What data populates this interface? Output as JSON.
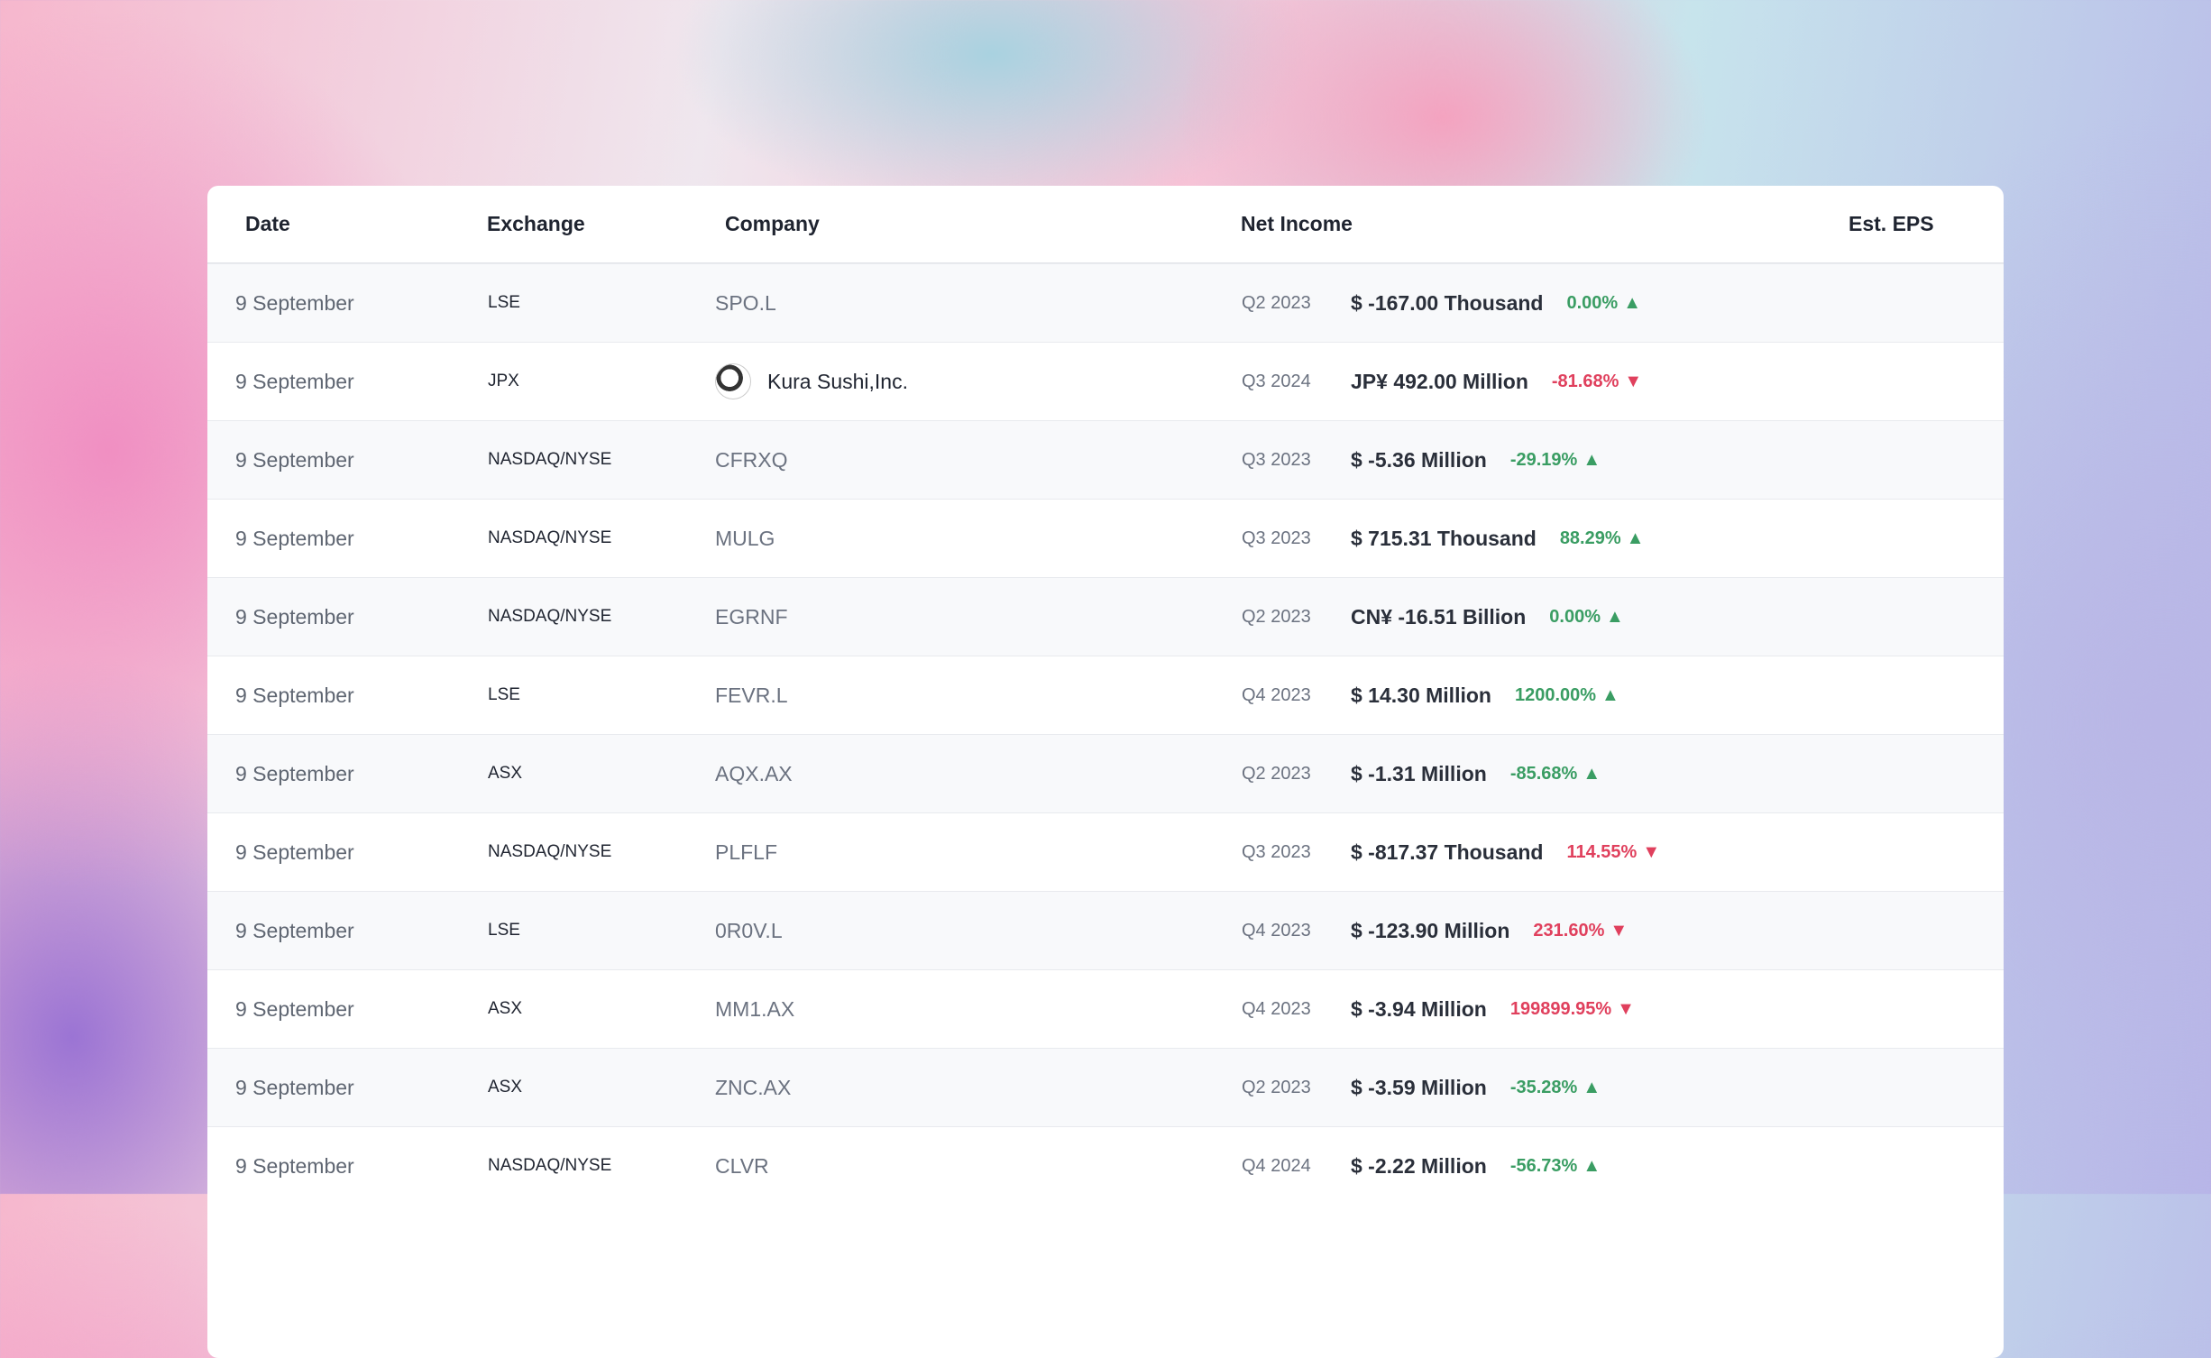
{
  "header": {
    "columns": [
      "Date",
      "Exchange",
      "Company",
      "Net Income",
      "Est. EPS"
    ]
  },
  "table": {
    "rows": [
      {
        "date": "9 September",
        "exchange": "LSE",
        "company": "SPO.L",
        "quarter": "Q2 2023",
        "net_income": "$ -167.00 Thousand",
        "change": "0.00%",
        "trend": "up"
      },
      {
        "date": "9 September",
        "exchange": "JPX",
        "company": "Kura Sushi,Inc.",
        "icon": true,
        "quarter": "Q3 2024",
        "net_income": "JP¥ 492.00 Million",
        "change": "-81.68%",
        "trend": "down"
      },
      {
        "date": "9 September",
        "exchange": "NASDAQ/NYSE",
        "company": "CFRXQ",
        "quarter": "Q3 2023",
        "net_income": "$ -5.36 Million",
        "change": "-29.19%",
        "trend": "up"
      },
      {
        "date": "9 September",
        "exchange": "NASDAQ/NYSE",
        "company": "MULG",
        "quarter": "Q3 2023",
        "net_income": "$ 715.31 Thousand",
        "change": "88.29%",
        "trend": "up"
      },
      {
        "date": "9 September",
        "exchange": "NASDAQ/NYSE",
        "company": "EGRNF",
        "quarter": "Q2 2023",
        "net_income": "CN¥ -16.51 Billion",
        "change": "0.00%",
        "trend": "up"
      },
      {
        "date": "9 September",
        "exchange": "LSE",
        "company": "FEVR.L",
        "quarter": "Q4 2023",
        "net_income": "$ 14.30 Million",
        "change": "1200.00%",
        "trend": "up"
      },
      {
        "date": "9 September",
        "exchange": "ASX",
        "company": "AQX.AX",
        "quarter": "Q2 2023",
        "net_income": "$ -1.31 Million",
        "change": "-85.68%",
        "trend": "up"
      },
      {
        "date": "9 September",
        "exchange": "NASDAQ/NYSE",
        "company": "PLFLF",
        "quarter": "Q3 2023",
        "net_income": "$ -817.37 Thousand",
        "change": "114.55%",
        "trend": "down"
      },
      {
        "date": "9 September",
        "exchange": "LSE",
        "company": "0R0V.L",
        "quarter": "Q4 2023",
        "net_income": "$ -123.90 Million",
        "change": "231.60%",
        "trend": "down"
      },
      {
        "date": "9 September",
        "exchange": "ASX",
        "company": "MM1.AX",
        "quarter": "Q4 2023",
        "net_income": "$ -3.94 Million",
        "change": "199899.95%",
        "trend": "down"
      },
      {
        "date": "9 September",
        "exchange": "ASX",
        "company": "ZNC.AX",
        "quarter": "Q2 2023",
        "net_income": "$ -3.59 Million",
        "change": "-35.28%",
        "trend": "up"
      },
      {
        "date": "9 September",
        "exchange": "NASDAQ/NYSE",
        "company": "CLVR",
        "quarter": "Q4 2024",
        "net_income": "$ -2.22 Million",
        "change": "-56.73%",
        "trend": "up"
      }
    ]
  }
}
